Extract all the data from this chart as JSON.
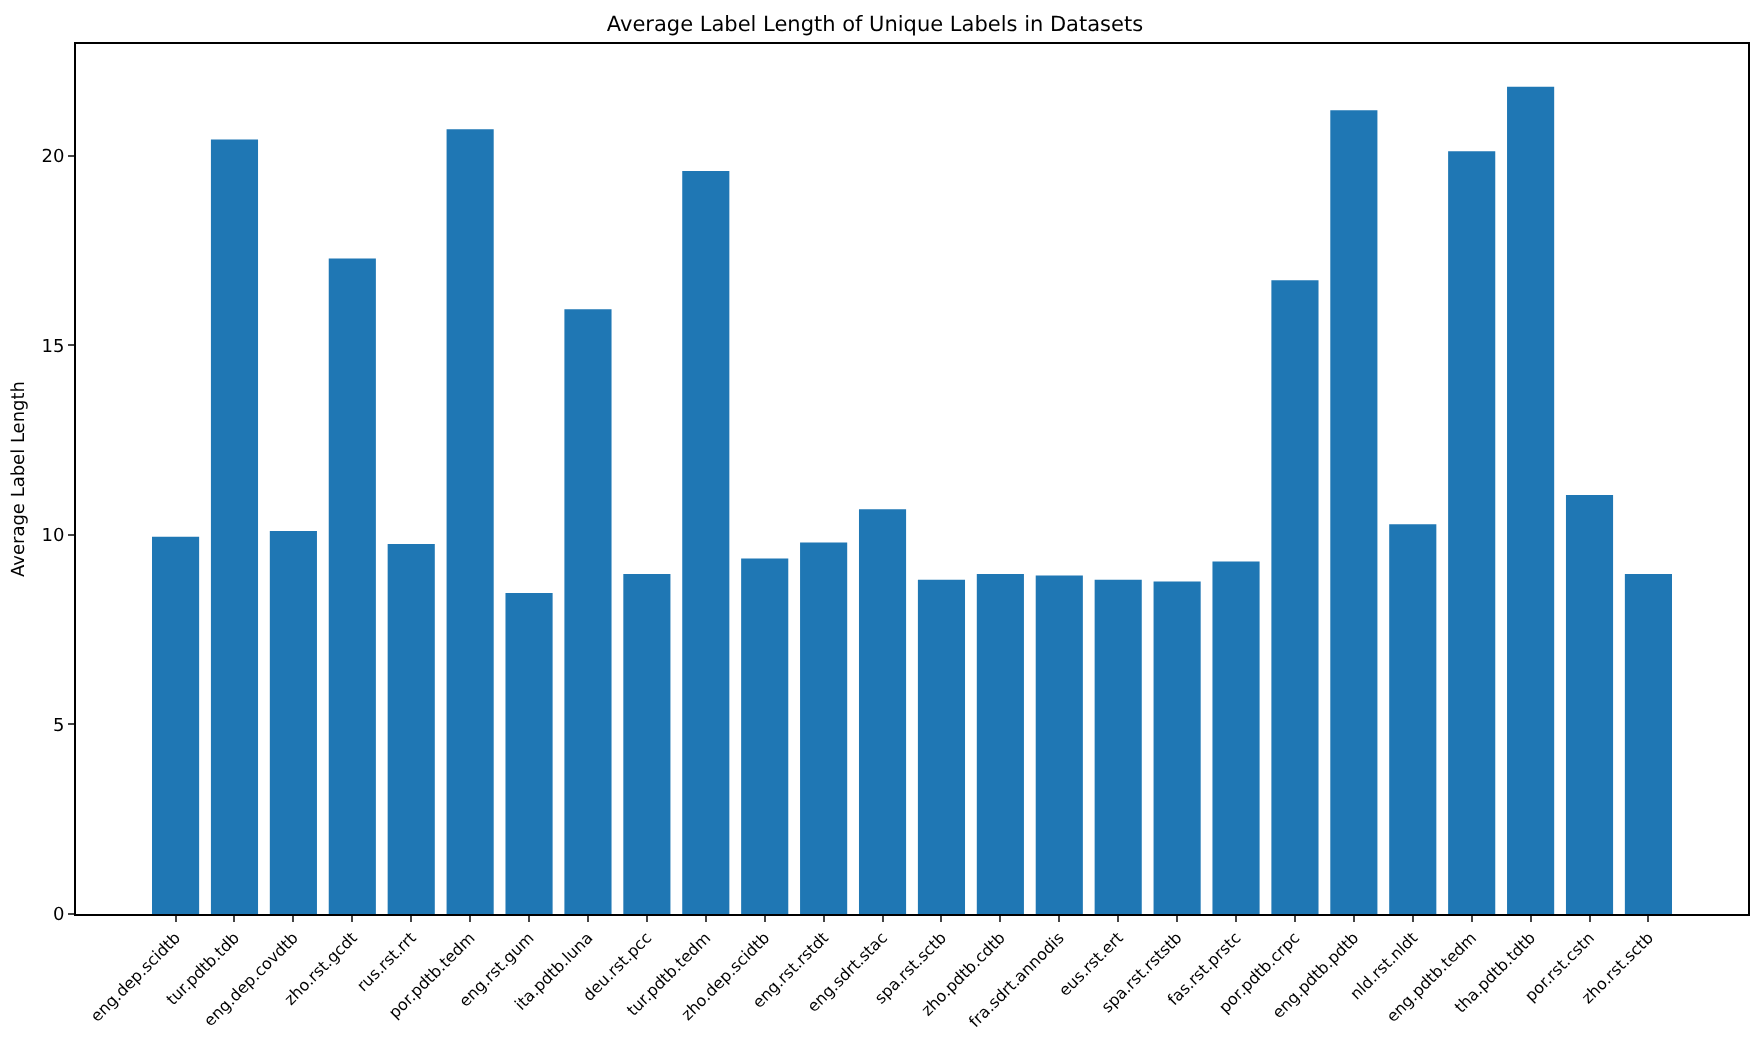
{
  "chart_data": {
    "type": "bar",
    "title": "Average Label Length of Unique Labels in Datasets",
    "ylabel": "Average Label Length",
    "categories": [
      "eng.dep.scidtb",
      "tur.pdtb.tdb",
      "eng.dep.covdtb",
      "zho.rst.gcdt",
      "rus.rst.rrt",
      "por.pdtb.tedm",
      "eng.rst.gum",
      "ita.pdtb.luna",
      "deu.rst.pcc",
      "tur.pdtb.tedm",
      "zho.dep.scidtb",
      "eng.rst.rstdt",
      "eng.sdrt.stac",
      "spa.rst.sctb",
      "zho.pdtb.cdtb",
      "fra.sdrt.annodis",
      "eus.rst.ert",
      "spa.rst.rststb",
      "fas.rst.prstc",
      "por.pdtb.crpc",
      "eng.pdtb.pdtb",
      "nld.rst.nldt",
      "eng.pdtb.tedm",
      "tha.pdtb.tdtb",
      "por.rst.cstn",
      "zho.rst.sctb"
    ],
    "values": [
      9.95,
      20.43,
      10.1,
      17.29,
      9.76,
      20.7,
      8.47,
      15.95,
      8.97,
      19.6,
      9.38,
      9.8,
      10.68,
      8.82,
      8.97,
      8.93,
      8.82,
      8.77,
      9.3,
      16.72,
      21.2,
      10.28,
      20.12,
      21.82,
      11.05,
      8.97
    ],
    "color": "#1f77b4",
    "ylim": [
      0,
      22.95
    ],
    "yticks": [
      0,
      5,
      10,
      15,
      20
    ],
    "grid": false
  }
}
